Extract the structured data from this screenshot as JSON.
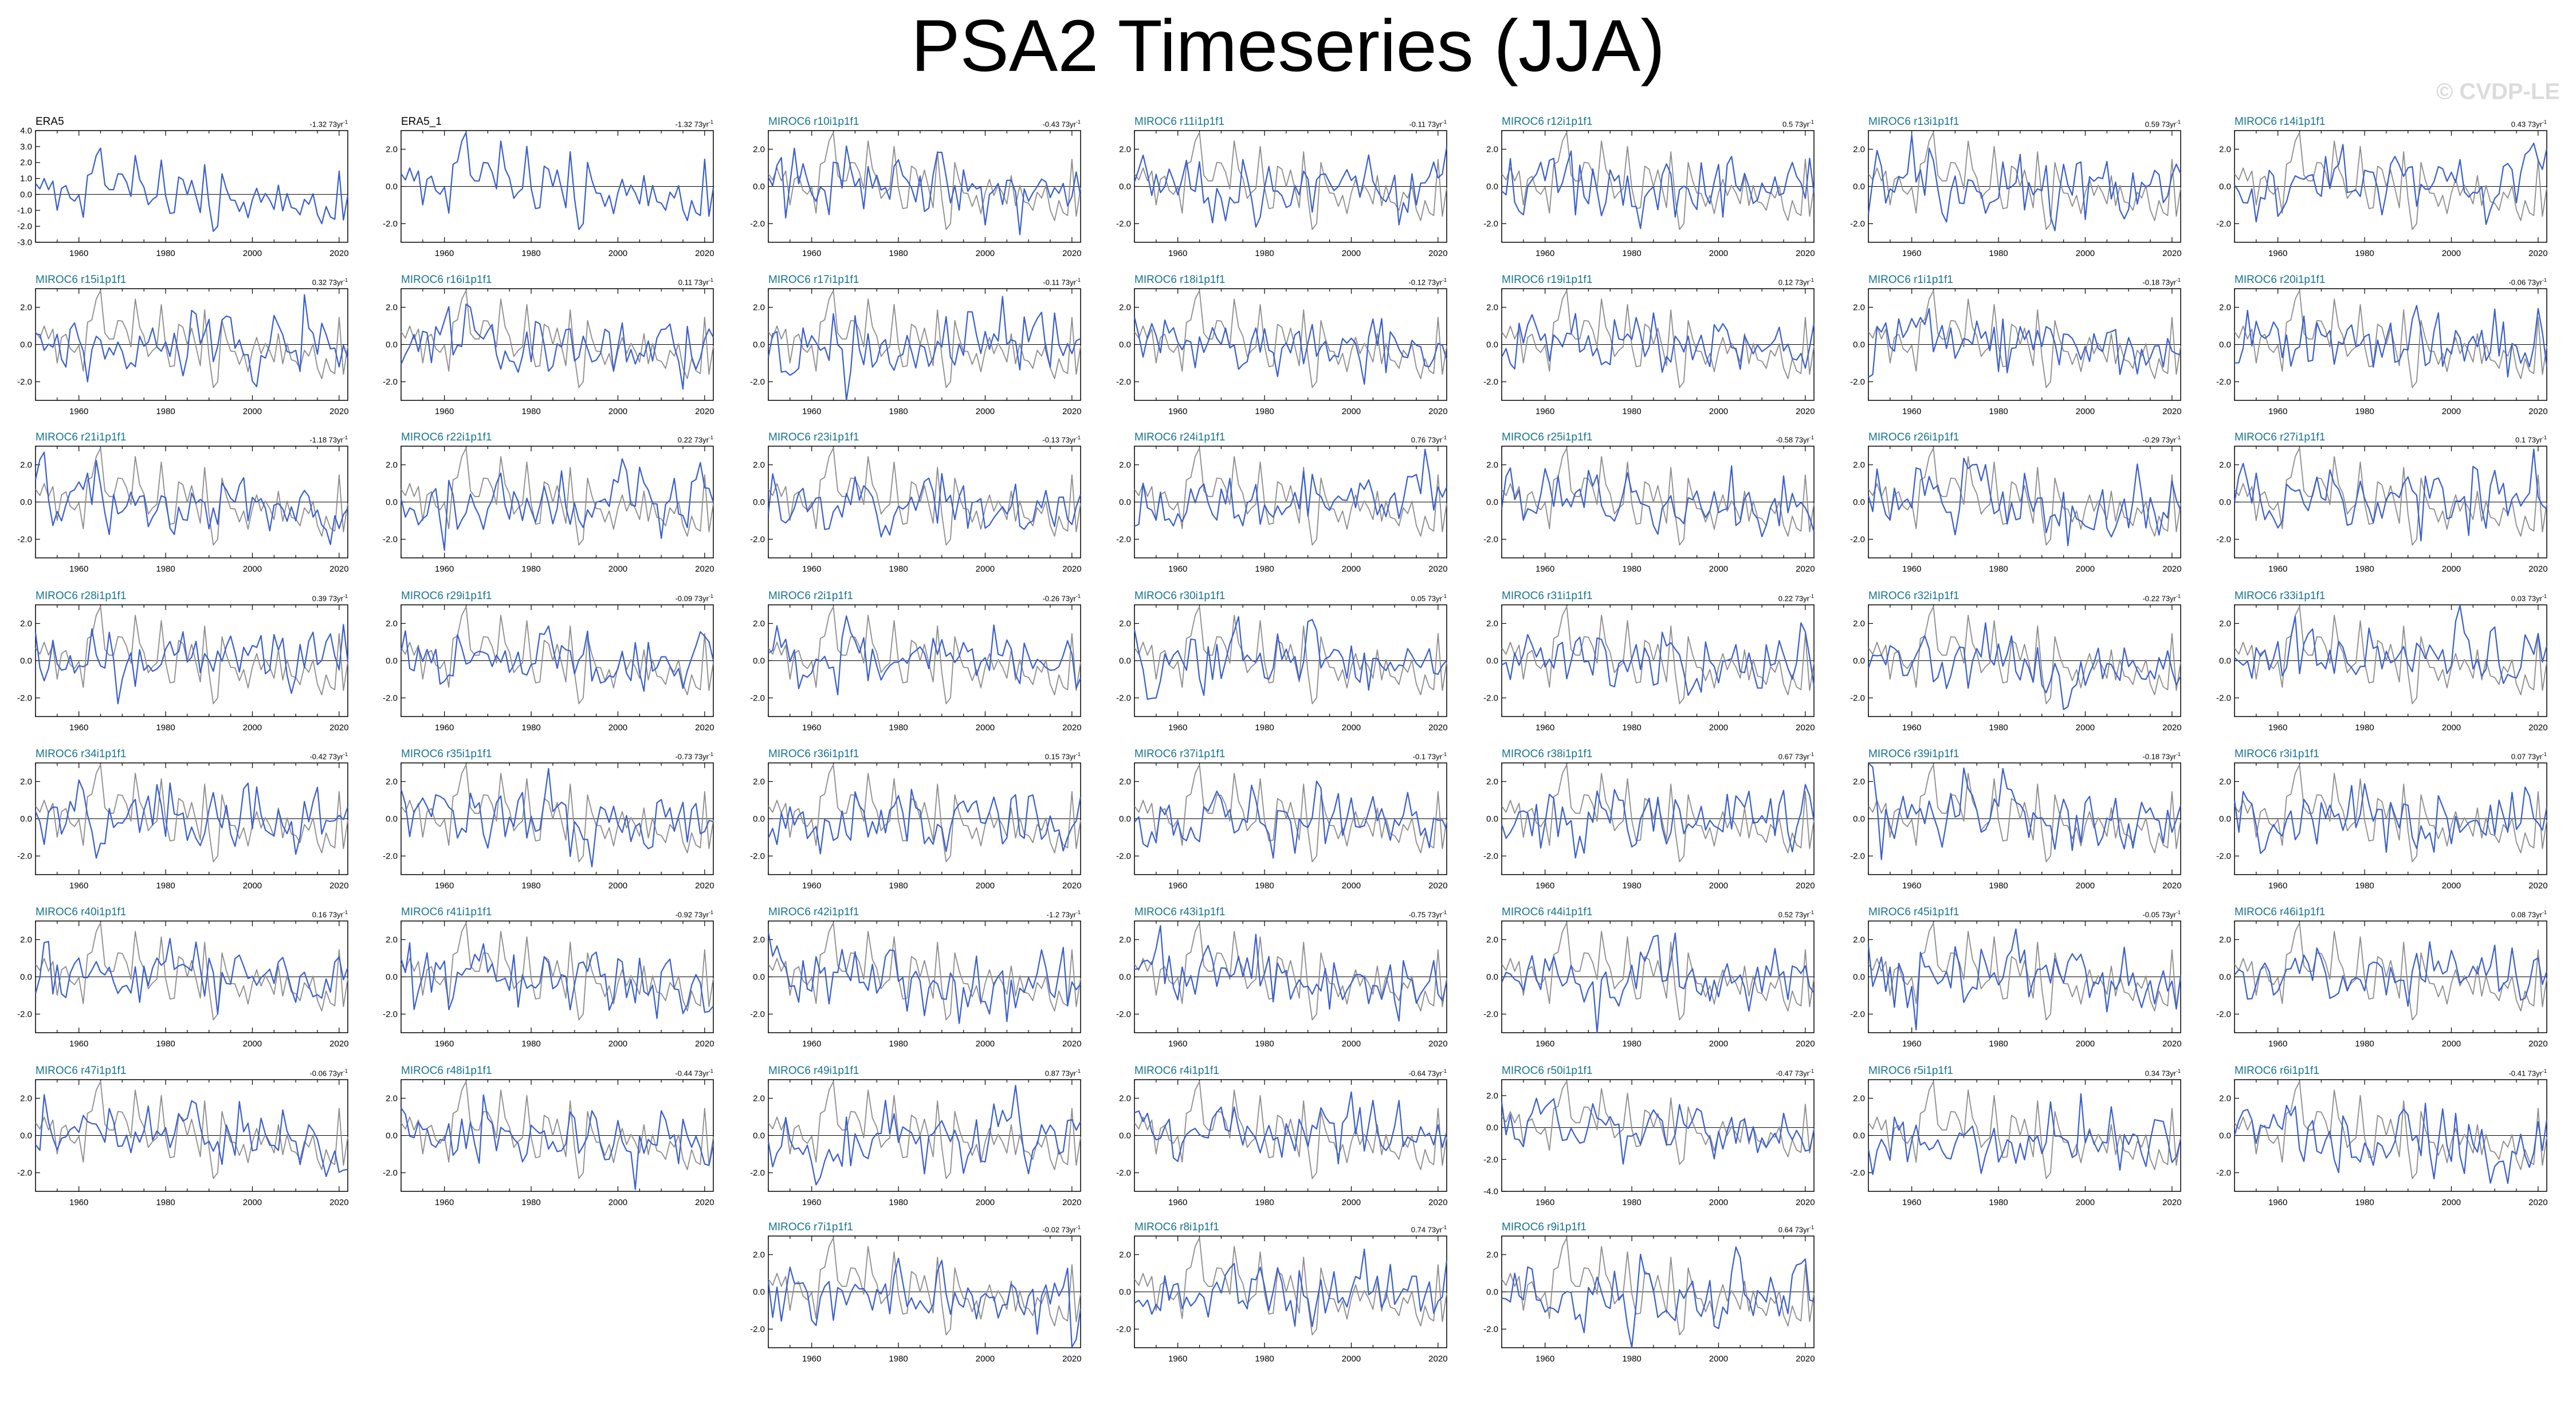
{
  "title": "PSA2 Timeseries (JJA)",
  "watermark": "© CVDP-LE",
  "colors": {
    "model_line": "#3a5fcd",
    "obs_line": "#8c8c8c",
    "model_title": "#17748f",
    "obs_title": "#000000",
    "zero_line": "#000000"
  },
  "chart_data": {
    "type": "line",
    "xlim": [
      1950,
      2022
    ],
    "ylim": [
      -3,
      3
    ],
    "x_ticks": [
      1960,
      1980,
      2000,
      2020
    ],
    "y_ticks_default": [
      "2.0",
      "0.0",
      "-2.0"
    ],
    "obs_reference_series": "ERA5",
    "panels": [
      {
        "id": "ERA5",
        "title": "ERA5",
        "trend": "-1.32",
        "unit": "73yr",
        "y_ticks": [
          "4.0",
          "3.0",
          "2.0",
          "1.0",
          "0.0",
          "-1.0",
          "-2.0",
          "-3.0"
        ],
        "ylim": [
          -3,
          4
        ],
        "obs": true
      },
      {
        "id": "ERA5_1",
        "title": "ERA5_1",
        "trend": "-1.32",
        "unit": "73yr",
        "obs": true
      },
      {
        "id": "r10",
        "title": "MIROC6 r10i1p1f1",
        "trend": "-0.43",
        "unit": "73yr"
      },
      {
        "id": "r11",
        "title": "MIROC6 r11i1p1f1",
        "trend": "-0.11",
        "unit": "73yr"
      },
      {
        "id": "r12",
        "title": "MIROC6 r12i1p1f1",
        "trend": "0.5",
        "unit": "73yr"
      },
      {
        "id": "r13",
        "title": "MIROC6 r13i1p1f1",
        "trend": "0.59",
        "unit": "73yr"
      },
      {
        "id": "r14",
        "title": "MIROC6 r14i1p1f1",
        "trend": "0.43",
        "unit": "73yr"
      },
      {
        "id": "r15",
        "title": "MIROC6 r15i1p1f1",
        "trend": "0.32",
        "unit": "73yr"
      },
      {
        "id": "r16",
        "title": "MIROC6 r16i1p1f1",
        "trend": "0.11",
        "unit": "73yr"
      },
      {
        "id": "r17",
        "title": "MIROC6 r17i1p1f1",
        "trend": "-0.11",
        "unit": "73yr"
      },
      {
        "id": "r18",
        "title": "MIROC6 r18i1p1f1",
        "trend": "-0.12",
        "unit": "73yr"
      },
      {
        "id": "r19",
        "title": "MIROC6 r19i1p1f1",
        "trend": "0.12",
        "unit": "73yr"
      },
      {
        "id": "r1",
        "title": "MIROC6 r1i1p1f1",
        "trend": "-0.18",
        "unit": "73yr"
      },
      {
        "id": "r20",
        "title": "MIROC6 r20i1p1f1",
        "trend": "-0.06",
        "unit": "73yr"
      },
      {
        "id": "r21",
        "title": "MIROC6 r21i1p1f1",
        "trend": "-1.18",
        "unit": "73yr"
      },
      {
        "id": "r22",
        "title": "MIROC6 r22i1p1f1",
        "trend": "0.22",
        "unit": "73yr"
      },
      {
        "id": "r23",
        "title": "MIROC6 r23i1p1f1",
        "trend": "-0.13",
        "unit": "73yr"
      },
      {
        "id": "r24",
        "title": "MIROC6 r24i1p1f1",
        "trend": "0.76",
        "unit": "73yr"
      },
      {
        "id": "r25",
        "title": "MIROC6 r25i1p1f1",
        "trend": "-0.58",
        "unit": "73yr"
      },
      {
        "id": "r26",
        "title": "MIROC6 r26i1p1f1",
        "trend": "-0.29",
        "unit": "73yr"
      },
      {
        "id": "r27",
        "title": "MIROC6 r27i1p1f1",
        "trend": "0.1",
        "unit": "73yr"
      },
      {
        "id": "r28",
        "title": "MIROC6 r28i1p1f1",
        "trend": "0.39",
        "unit": "73yr"
      },
      {
        "id": "r29",
        "title": "MIROC6 r29i1p1f1",
        "trend": "-0.09",
        "unit": "73yr"
      },
      {
        "id": "r2",
        "title": "MIROC6 r2i1p1f1",
        "trend": "-0.26",
        "unit": "73yr"
      },
      {
        "id": "r30",
        "title": "MIROC6 r30i1p1f1",
        "trend": "0.05",
        "unit": "73yr"
      },
      {
        "id": "r31",
        "title": "MIROC6 r31i1p1f1",
        "trend": "0.22",
        "unit": "73yr"
      },
      {
        "id": "r32",
        "title": "MIROC6 r32i1p1f1",
        "trend": "-0.22",
        "unit": "73yr"
      },
      {
        "id": "r33",
        "title": "MIROC6 r33i1p1f1",
        "trend": "0.03",
        "unit": "73yr"
      },
      {
        "id": "r34",
        "title": "MIROC6 r34i1p1f1",
        "trend": "-0.42",
        "unit": "73yr"
      },
      {
        "id": "r35",
        "title": "MIROC6 r35i1p1f1",
        "trend": "-0.73",
        "unit": "73yr"
      },
      {
        "id": "r36",
        "title": "MIROC6 r36i1p1f1",
        "trend": "0.15",
        "unit": "73yr"
      },
      {
        "id": "r37",
        "title": "MIROC6 r37i1p1f1",
        "trend": "-0.1",
        "unit": "73yr"
      },
      {
        "id": "r38",
        "title": "MIROC6 r38i1p1f1",
        "trend": "0.67",
        "unit": "73yr"
      },
      {
        "id": "r39",
        "title": "MIROC6 r39i1p1f1",
        "trend": "-0.18",
        "unit": "73yr"
      },
      {
        "id": "r3",
        "title": "MIROC6 r3i1p1f1",
        "trend": "0.07",
        "unit": "73yr"
      },
      {
        "id": "r40",
        "title": "MIROC6 r40i1p1f1",
        "trend": "0.16",
        "unit": "73yr"
      },
      {
        "id": "r41",
        "title": "MIROC6 r41i1p1f1",
        "trend": "-0.92",
        "unit": "73yr"
      },
      {
        "id": "r42",
        "title": "MIROC6 r42i1p1f1",
        "trend": "-1.2",
        "unit": "73yr"
      },
      {
        "id": "r43",
        "title": "MIROC6 r43i1p1f1",
        "trend": "-0.75",
        "unit": "73yr"
      },
      {
        "id": "r44",
        "title": "MIROC6 r44i1p1f1",
        "trend": "0.52",
        "unit": "73yr"
      },
      {
        "id": "r45",
        "title": "MIROC6 r45i1p1f1",
        "trend": "-0.05",
        "unit": "73yr"
      },
      {
        "id": "r46",
        "title": "MIROC6 r46i1p1f1",
        "trend": "0.08",
        "unit": "73yr"
      },
      {
        "id": "r47",
        "title": "MIROC6 r47i1p1f1",
        "trend": "-0.06",
        "unit": "73yr"
      },
      {
        "id": "r48",
        "title": "MIROC6 r48i1p1f1",
        "trend": "-0.44",
        "unit": "73yr"
      },
      {
        "id": "r49",
        "title": "MIROC6 r49i1p1f1",
        "trend": "0.87",
        "unit": "73yr"
      },
      {
        "id": "r4",
        "title": "MIROC6 r4i1p1f1",
        "trend": "-0.64",
        "unit": "73yr"
      },
      {
        "id": "r50",
        "title": "MIROC6 r50i1p1f1",
        "trend": "-0.47",
        "unit": "73yr",
        "y_ticks": [
          "2.0",
          "0.0",
          "-2.0",
          "-4.0"
        ],
        "ylim": [
          -4,
          3
        ]
      },
      {
        "id": "r5",
        "title": "MIROC6 r5i1p1f1",
        "trend": "0.34",
        "unit": "73yr"
      },
      {
        "id": "r6",
        "title": "MIROC6 r6i1p1f1",
        "trend": "-0.41",
        "unit": "73yr"
      },
      {
        "id": "r7",
        "title": "MIROC6 r7i1p1f1",
        "trend": "-0.02",
        "unit": "73yr"
      },
      {
        "id": "r8",
        "title": "MIROC6 r8i1p1f1",
        "trend": "0.74",
        "unit": "73yr"
      },
      {
        "id": "r9",
        "title": "MIROC6 r9i1p1f1",
        "trend": "0.64",
        "unit": "73yr"
      }
    ]
  }
}
